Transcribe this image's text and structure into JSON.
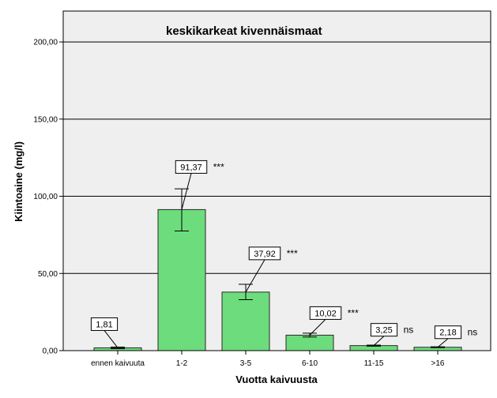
{
  "chart_data": {
    "type": "bar",
    "title": "keskikarkeat kivennäismaat",
    "xlabel": "Vuotta kaivuusta",
    "ylabel": "Kiintoaine (mg/l)",
    "ylim": [
      0,
      220
    ],
    "yticks": [
      0,
      50,
      100,
      150,
      200
    ],
    "ytick_labels": [
      "0,00",
      "50,00",
      "100,00",
      "150,00",
      "200,00"
    ],
    "grid": true,
    "categories": [
      "ennen kaivuuta",
      "1-2",
      "3-5",
      "6-10",
      "11-15",
      ">16"
    ],
    "values": [
      1.81,
      91.37,
      37.92,
      10.02,
      3.25,
      2.18
    ],
    "value_labels": [
      "1,81",
      "91,37",
      "37,92",
      "10,02",
      "3,25",
      "2,18"
    ],
    "error_low": [
      1.3,
      77.5,
      33.0,
      8.8,
      2.9,
      1.9
    ],
    "error_high": [
      2.3,
      104.8,
      43.0,
      11.3,
      3.6,
      2.5
    ],
    "significance": [
      "",
      "***",
      "***",
      "***",
      "ns",
      "ns"
    ],
    "colors": {
      "bar_fill": "#6ddc7c",
      "bar_stroke": "#2a2a2a",
      "plot_background": "#efefef",
      "grid": "#000000"
    }
  }
}
